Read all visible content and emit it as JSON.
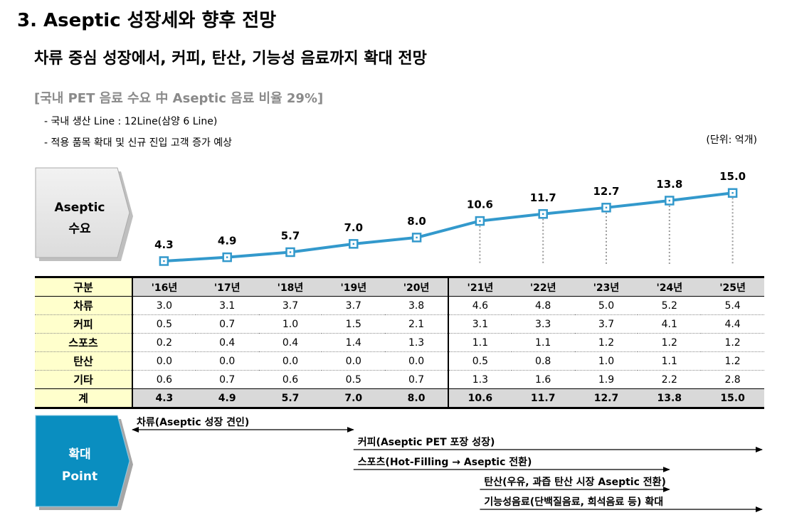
{
  "title": "3. Aseptic 성장세와 향후 전망",
  "subtitle": "차류 중심 성장에서, 커피, 탄산, 기능성 음료까지 확대 전망",
  "section_title": "[국내 PET 음료 수요 中 Aseptic 음료 비율 29%]",
  "notes": [
    "- 국내 생산 Line : 12Line(삼양 6 Line)",
    "- 적용 품목 확대 및 신규 진입 고객 증가 예상"
  ],
  "unit": "(단위: 억개)",
  "demand_label": [
    "Aseptic",
    "수요"
  ],
  "expand_label": [
    "확대",
    "Point"
  ],
  "colors": {
    "line": "#3399cc",
    "expand_box": "#0a8ec0",
    "header_bg": "#d9d9d9",
    "row_label_bg": "#ffffcc"
  },
  "chart_data": {
    "type": "line",
    "title": "Aseptic 수요",
    "x": [
      "'16년",
      "'17년",
      "'18년",
      "'19년",
      "'20년",
      "'21년",
      "'22년",
      "'23년",
      "'24년",
      "'25년"
    ],
    "series": [
      {
        "name": "계",
        "values": [
          4.3,
          4.9,
          5.7,
          7.0,
          8.0,
          10.6,
          11.7,
          12.7,
          13.8,
          15.0
        ]
      }
    ],
    "value_labels": [
      "4.3",
      "4.9",
      "5.7",
      "7.0",
      "8.0",
      "10.6",
      "11.7",
      "12.7",
      "13.8",
      "15.0"
    ],
    "forecast_from": "'21년",
    "unit": "억개"
  },
  "table": {
    "header_label": "구분",
    "columns": [
      "'16년",
      "'17년",
      "'18년",
      "'19년",
      "'20년",
      "'21년",
      "'22년",
      "'23년",
      "'24년",
      "'25년"
    ],
    "rows": [
      {
        "label": "차류",
        "values": [
          "3.0",
          "3.1",
          "3.7",
          "3.7",
          "3.8",
          "4.6",
          "4.8",
          "5.0",
          "5.2",
          "5.4"
        ]
      },
      {
        "label": "커피",
        "values": [
          "0.5",
          "0.7",
          "1.0",
          "1.5",
          "2.1",
          "3.1",
          "3.3",
          "3.7",
          "4.1",
          "4.4"
        ]
      },
      {
        "label": "스포츠",
        "values": [
          "0.2",
          "0.4",
          "0.4",
          "1.4",
          "1.3",
          "1.1",
          "1.1",
          "1.2",
          "1.2",
          "1.2"
        ]
      },
      {
        "label": "탄산",
        "values": [
          "0.0",
          "0.0",
          "0.0",
          "0.0",
          "0.0",
          "0.5",
          "0.8",
          "1.0",
          "1.1",
          "1.2"
        ]
      },
      {
        "label": "기타",
        "values": [
          "0.6",
          "0.7",
          "0.6",
          "0.5",
          "0.7",
          "1.3",
          "1.6",
          "1.9",
          "2.2",
          "2.8"
        ]
      }
    ],
    "total": {
      "label": "계",
      "values": [
        "4.3",
        "4.9",
        "5.7",
        "7.0",
        "8.0",
        "10.6",
        "11.7",
        "12.7",
        "13.8",
        "15.0"
      ]
    }
  },
  "expansion": [
    {
      "label": "차류(Aseptic 성장 견인)",
      "from": "'16년",
      "to": "'19년"
    },
    {
      "label": "커피(Aseptic PET 포장 성장)",
      "from": "'19년",
      "to": "'25년"
    },
    {
      "label": "스포츠(Hot-Filling → Aseptic 전환)",
      "from": "'19년",
      "to": "'24년"
    },
    {
      "label": "탄산(우유, 과즙 탄산 시장 Aseptic 전환)",
      "from": "'21년",
      "to": "'24년"
    },
    {
      "label": "기능성음료(단백질음료, 희석음료 등) 확대",
      "from": "'21년",
      "to": "'25년"
    }
  ]
}
